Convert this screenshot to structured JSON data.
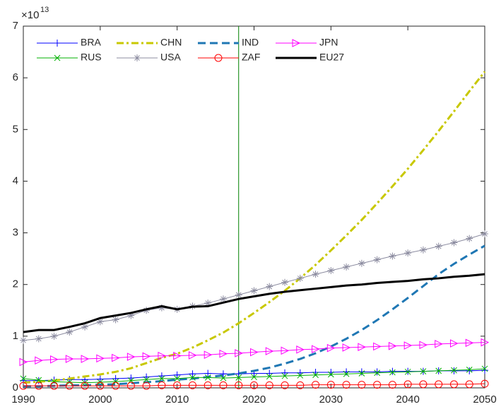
{
  "chart_data": {
    "type": "line",
    "exponent_label": {
      "base": "×10",
      "exponent": "13"
    },
    "x": [
      1990,
      1992,
      1994,
      1996,
      1998,
      2000,
      2002,
      2004,
      2006,
      2008,
      2010,
      2012,
      2014,
      2016,
      2018,
      2020,
      2022,
      2024,
      2026,
      2028,
      2030,
      2032,
      2034,
      2036,
      2038,
      2040,
      2042,
      2044,
      2046,
      2048,
      2050
    ],
    "xlim": [
      1990,
      2050
    ],
    "xticks": [
      1990,
      2000,
      2010,
      2020,
      2030,
      2040,
      2050
    ],
    "ylim": [
      0,
      7
    ],
    "yticks": [
      0,
      1,
      2,
      3,
      4,
      5,
      6,
      7
    ],
    "vline": {
      "x": 2018,
      "color": "#008000"
    },
    "legend_columns": 4,
    "series": [
      {
        "name": "BRA",
        "color": "#0000ff",
        "marker": "plus",
        "dash": "",
        "width": 1,
        "values": [
          0.14,
          0.14,
          0.15,
          0.16,
          0.16,
          0.17,
          0.18,
          0.19,
          0.21,
          0.23,
          0.25,
          0.27,
          0.28,
          0.27,
          0.27,
          0.28,
          0.28,
          0.29,
          0.29,
          0.3,
          0.3,
          0.31,
          0.31,
          0.31,
          0.32,
          0.32,
          0.32,
          0.33,
          0.33,
          0.33,
          0.34
        ]
      },
      {
        "name": "CHN",
        "color": "#c8c800",
        "marker": "none",
        "dash": "10 4 3 4",
        "width": 3,
        "values": [
          0.1,
          0.12,
          0.14,
          0.18,
          0.22,
          0.26,
          0.31,
          0.38,
          0.48,
          0.58,
          0.66,
          0.78,
          0.92,
          1.07,
          1.25,
          1.45,
          1.66,
          1.88,
          2.12,
          2.38,
          2.66,
          2.95,
          3.25,
          3.57,
          3.9,
          4.24,
          4.6,
          4.97,
          5.35,
          5.74,
          6.12
        ]
      },
      {
        "name": "IND",
        "color": "#1f77b4",
        "marker": "none",
        "dash": "11 6",
        "width": 3,
        "values": [
          0.03,
          0.03,
          0.04,
          0.05,
          0.05,
          0.06,
          0.07,
          0.09,
          0.11,
          0.13,
          0.16,
          0.18,
          0.21,
          0.24,
          0.28,
          0.33,
          0.39,
          0.47,
          0.56,
          0.67,
          0.8,
          0.95,
          1.12,
          1.31,
          1.52,
          1.74,
          1.97,
          2.2,
          2.4,
          2.58,
          2.75
        ]
      },
      {
        "name": "JPN",
        "color": "#ff00ff",
        "marker": "triangle-right",
        "dash": "",
        "width": 1,
        "values": [
          0.5,
          0.53,
          0.55,
          0.56,
          0.56,
          0.57,
          0.58,
          0.6,
          0.61,
          0.62,
          0.62,
          0.63,
          0.64,
          0.66,
          0.67,
          0.69,
          0.71,
          0.72,
          0.74,
          0.75,
          0.77,
          0.78,
          0.79,
          0.8,
          0.81,
          0.82,
          0.83,
          0.85,
          0.86,
          0.87,
          0.88
        ]
      },
      {
        "name": "RUS",
        "color": "#00b000",
        "marker": "x",
        "dash": "",
        "width": 1,
        "values": [
          0.18,
          0.15,
          0.12,
          0.11,
          0.1,
          0.11,
          0.12,
          0.14,
          0.16,
          0.18,
          0.18,
          0.2,
          0.2,
          0.19,
          0.2,
          0.21,
          0.22,
          0.23,
          0.24,
          0.25,
          0.26,
          0.27,
          0.28,
          0.29,
          0.3,
          0.31,
          0.32,
          0.33,
          0.34,
          0.35,
          0.37
        ]
      },
      {
        "name": "USA",
        "color": "#8c8ca0",
        "marker": "star",
        "dash": "",
        "width": 1,
        "values": [
          0.92,
          0.95,
          1.0,
          1.08,
          1.18,
          1.28,
          1.32,
          1.4,
          1.5,
          1.55,
          1.52,
          1.58,
          1.64,
          1.72,
          1.8,
          1.88,
          1.96,
          2.04,
          2.12,
          2.2,
          2.27,
          2.34,
          2.41,
          2.48,
          2.55,
          2.61,
          2.67,
          2.74,
          2.81,
          2.89,
          2.98
        ]
      },
      {
        "name": "ZAF",
        "color": "#ff0000",
        "marker": "circle",
        "dash": "",
        "width": 1,
        "values": [
          0.04,
          0.04,
          0.04,
          0.04,
          0.04,
          0.04,
          0.04,
          0.04,
          0.04,
          0.05,
          0.05,
          0.05,
          0.05,
          0.05,
          0.05,
          0.05,
          0.05,
          0.05,
          0.05,
          0.06,
          0.06,
          0.06,
          0.06,
          0.06,
          0.06,
          0.07,
          0.07,
          0.07,
          0.07,
          0.07,
          0.08
        ]
      },
      {
        "name": "EU27",
        "color": "#000000",
        "marker": "none",
        "dash": "",
        "width": 3,
        "values": [
          1.08,
          1.12,
          1.12,
          1.18,
          1.25,
          1.35,
          1.4,
          1.45,
          1.52,
          1.58,
          1.52,
          1.57,
          1.58,
          1.65,
          1.72,
          1.77,
          1.82,
          1.86,
          1.89,
          1.92,
          1.95,
          1.98,
          2.0,
          2.03,
          2.05,
          2.07,
          2.1,
          2.12,
          2.15,
          2.17,
          2.2
        ]
      }
    ]
  }
}
